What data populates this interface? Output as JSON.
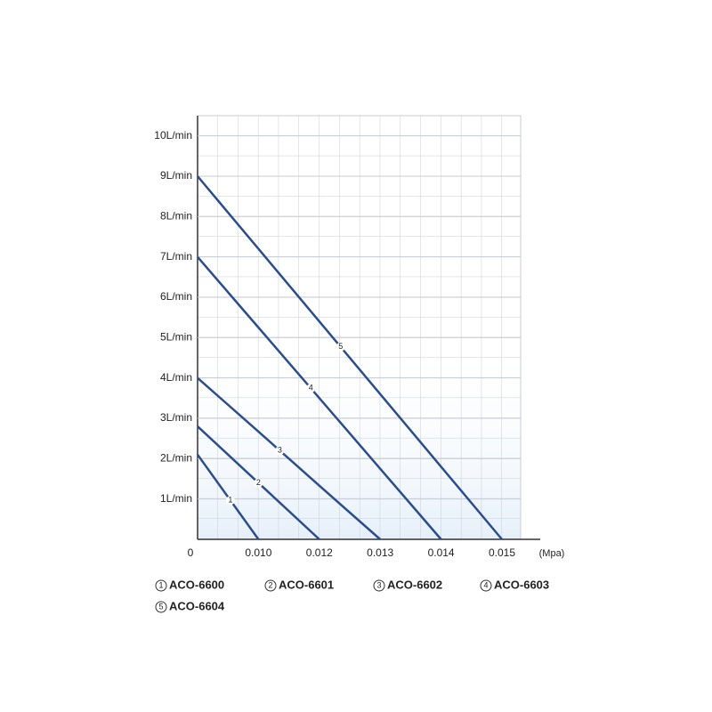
{
  "chart_data": {
    "type": "line",
    "x_label": "(Mpa)",
    "categories": [
      "0",
      "0.010",
      "0.012",
      "0.013",
      "0.014",
      "0.015"
    ],
    "ylim": [
      0,
      10.5
    ],
    "yticks": [
      {
        "value": 1,
        "label": "1L/min"
      },
      {
        "value": 2,
        "label": "2L/min"
      },
      {
        "value": 3,
        "label": "3L/min"
      },
      {
        "value": 4,
        "label": "4L/min"
      },
      {
        "value": 5,
        "label": "5L/min"
      },
      {
        "value": 6,
        "label": "6L/min"
      },
      {
        "value": 7,
        "label": "7L/min"
      },
      {
        "value": 8,
        "label": "8L/min"
      },
      {
        "value": 9,
        "label": "9L/min"
      },
      {
        "value": 10,
        "label": "10L/min"
      }
    ],
    "grid": true,
    "series": [
      {
        "name": "ACO-6600",
        "label": "1",
        "color": "#2a4d8f",
        "values": [
          2.1,
          0,
          null,
          null,
          null,
          null
        ]
      },
      {
        "name": "ACO-6601",
        "label": "2",
        "color": "#2a4d8f",
        "values": [
          2.8,
          1.4,
          0,
          null,
          null,
          null
        ]
      },
      {
        "name": "ACO-6602",
        "label": "3",
        "color": "#2a4d8f",
        "values": [
          4.0,
          2.67,
          1.33,
          0,
          null,
          null
        ]
      },
      {
        "name": "ACO-6603",
        "label": "4",
        "color": "#2a4d8f",
        "values": [
          7.0,
          5.25,
          3.5,
          1.75,
          0,
          null
        ]
      },
      {
        "name": "ACO-6604",
        "label": "5",
        "color": "#2a4d8f",
        "values": [
          9.0,
          7.2,
          5.4,
          3.6,
          1.8,
          0
        ]
      }
    ]
  }
}
